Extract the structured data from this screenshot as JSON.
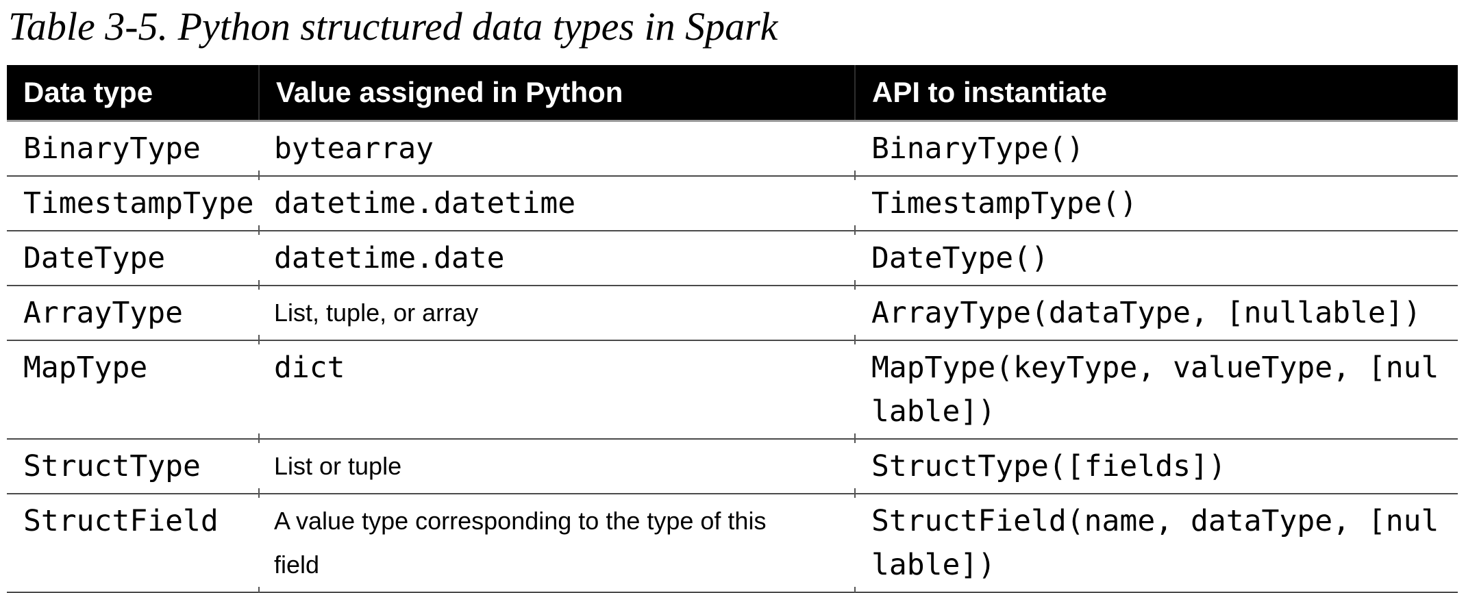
{
  "title": "Table 3-5. Python structured data types in Spark",
  "table": {
    "columns": [
      {
        "label": "Data type"
      },
      {
        "label": "Value assigned in Python"
      },
      {
        "label": "API to instantiate"
      }
    ],
    "rows": [
      {
        "data_type": "BinaryType",
        "value": "bytearray",
        "value_style": "mono",
        "api": "BinaryType()"
      },
      {
        "data_type": "TimestampType",
        "value": "datetime.datetime",
        "value_style": "mono",
        "api": "TimestampType()"
      },
      {
        "data_type": "DateType",
        "value": "datetime.date",
        "value_style": "mono",
        "api": "DateType()"
      },
      {
        "data_type": "ArrayType",
        "value": "List, tuple, or array",
        "value_style": "sans",
        "api": "ArrayType(dataType, [nullable])"
      },
      {
        "data_type": "MapType",
        "value": "dict",
        "value_style": "mono",
        "api": "MapType(keyType, valueType, [nul\nlable])"
      },
      {
        "data_type": "StructType",
        "value": "List or tuple",
        "value_style": "sans",
        "api": "StructType([fields])"
      },
      {
        "data_type": "StructField",
        "value": "A value type corresponding to the type of this\nfield",
        "value_style": "sans",
        "api": "StructField(name, dataType, [nul\nlable])"
      }
    ]
  },
  "colors": {
    "background": "#ffffff",
    "text": "#000000",
    "header_bg": "#000000",
    "header_text": "#ffffff",
    "header_divider": "#2e2e2e",
    "header_bottom_rule": "#9a9a9a",
    "row_rule": "#4a4a4a",
    "column_tick": "#555555"
  }
}
